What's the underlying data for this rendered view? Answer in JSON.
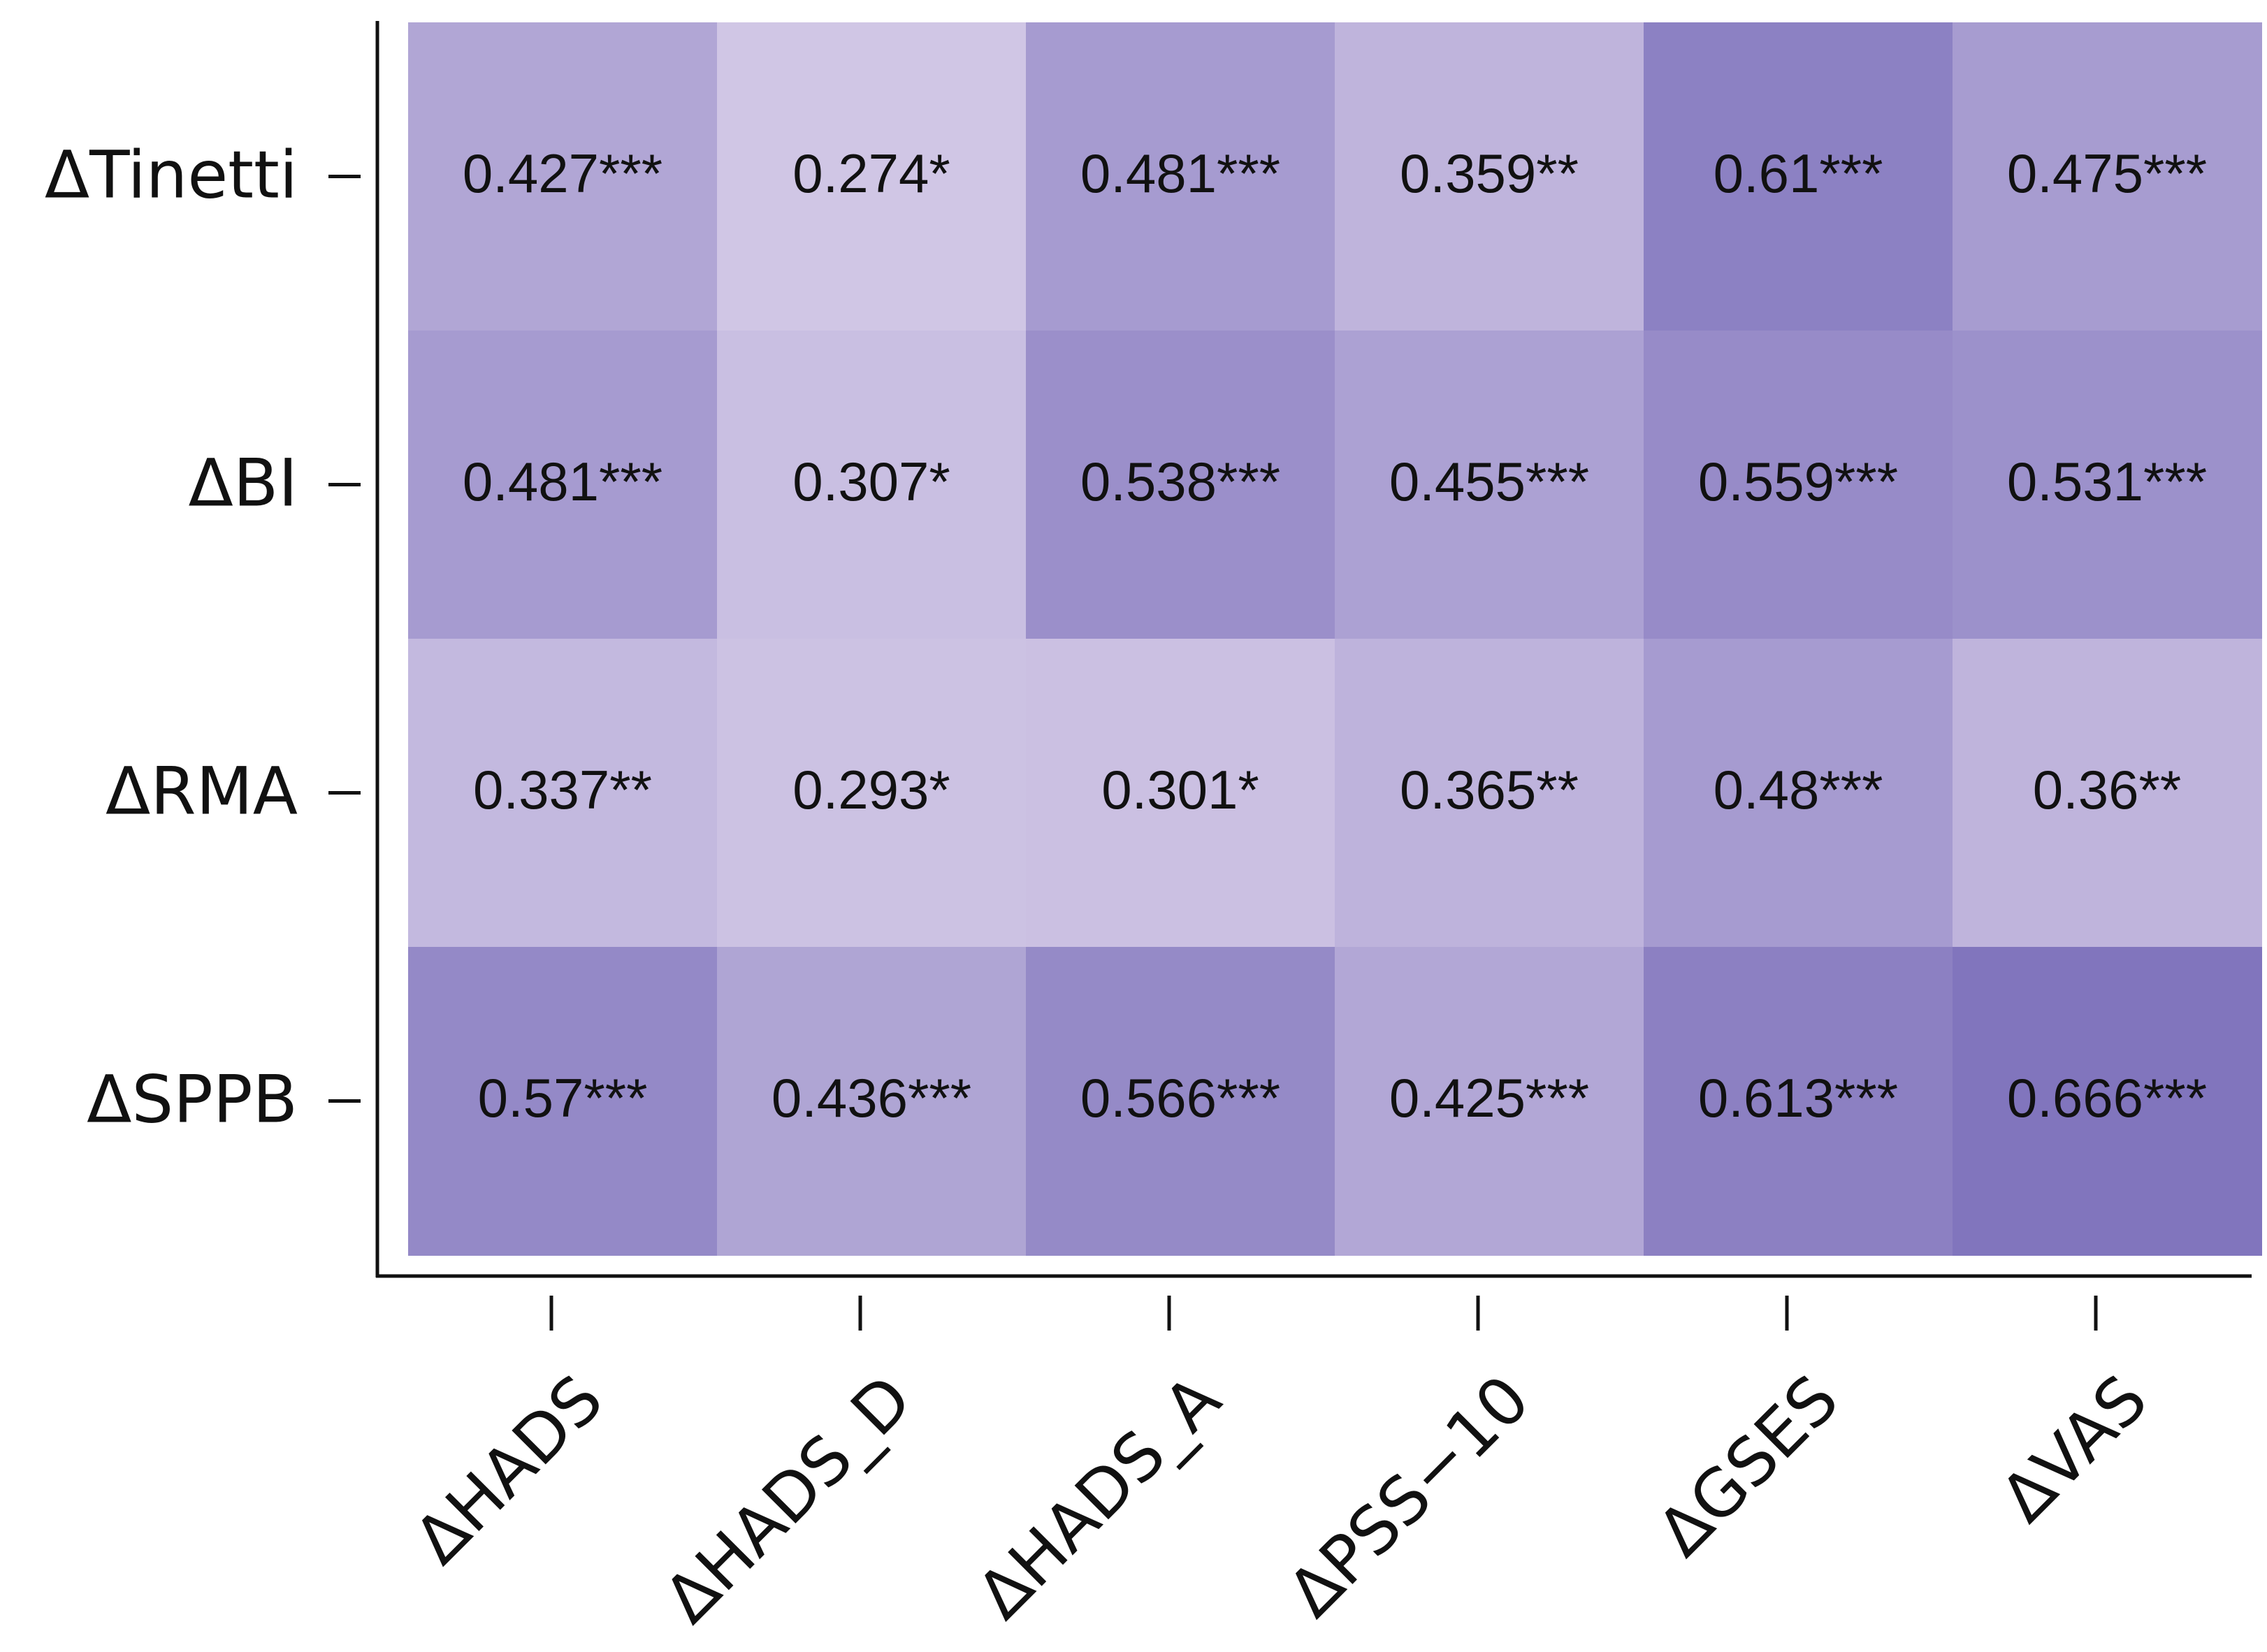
{
  "chart_data": {
    "type": "heatmap",
    "title": "",
    "xlabel": "",
    "ylabel": "",
    "rows": [
      "ΔTinetti",
      "ΔBI",
      "ΔRMA",
      "ΔSPPB"
    ],
    "columns": [
      "ΔHADS",
      "ΔHADS_D",
      "ΔHADS_A",
      "ΔPSS−10",
      "ΔGSES",
      "ΔVAS"
    ],
    "values": [
      [
        0.427,
        0.274,
        0.481,
        0.359,
        0.61,
        0.475
      ],
      [
        0.481,
        0.307,
        0.538,
        0.455,
        0.559,
        0.531
      ],
      [
        0.337,
        0.293,
        0.301,
        0.365,
        0.48,
        0.36
      ],
      [
        0.57,
        0.436,
        0.566,
        0.425,
        0.613,
        0.666
      ]
    ],
    "labels": [
      [
        "0.427***",
        "0.274*",
        "0.481***",
        "0.359**",
        "0.61***",
        "0.475***"
      ],
      [
        "0.481***",
        "0.307*",
        "0.538***",
        "0.455***",
        "0.559***",
        "0.531***"
      ],
      [
        "0.337**",
        "0.293*",
        "0.301*",
        "0.365**",
        "0.48***",
        "0.36**"
      ],
      [
        "0.57***",
        "0.436***",
        "0.566***",
        "0.425***",
        "0.613***",
        "0.666***"
      ]
    ],
    "color_scale": {
      "min_value": 0.274,
      "max_value": 0.666,
      "low_color": "#d0c6e5",
      "high_color": "#8175bd"
    },
    "grid": false,
    "legend": "none"
  }
}
